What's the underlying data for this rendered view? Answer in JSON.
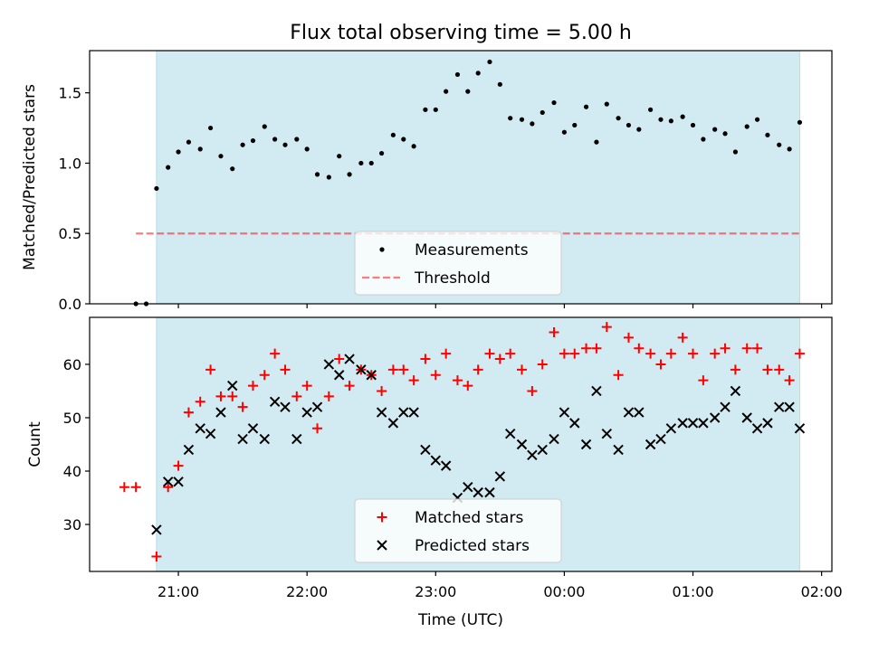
{
  "figure": {
    "title": "Flux total observing time = 5.00 h",
    "xlabel": "Time (UTC)",
    "x_tick_labels": [
      "21:00",
      "22:00",
      "23:00",
      "00:00",
      "01:00",
      "02:00"
    ]
  },
  "colors": {
    "shade": "#add8e6",
    "threshold": "#ff0000",
    "matched": "#ff0000",
    "predicted": "#000000",
    "measurement": "#000000"
  },
  "chart_data": [
    {
      "type": "scatter",
      "title": "Flux total observing time = 5.00 h",
      "ylabel": "Matched/Predicted stars",
      "xlabel": "",
      "x_unit": "hours after 20:00 UTC (same date scale as tick labels)",
      "xlim": [
        0.31,
        6.08
      ],
      "ylim": [
        0.0,
        1.8
      ],
      "y_tick_labels": [
        "0.0",
        "0.5",
        "1.0",
        "1.5"
      ],
      "y_ticks": [
        0.0,
        0.5,
        1.0,
        1.5
      ],
      "x_ticks": [
        1,
        2,
        3,
        4,
        5,
        6
      ],
      "observing_window": [
        0.83,
        5.83
      ],
      "threshold": {
        "name": "Threshold",
        "y": 0.5,
        "x_range": [
          0.67,
          5.83
        ],
        "style": "dashed"
      },
      "legend": {
        "position": "lower center",
        "entries": [
          "Measurements",
          "Threshold"
        ]
      },
      "series": [
        {
          "name": "Measurements",
          "x": [
            0.67,
            0.75,
            0.83,
            0.92,
            1.0,
            1.08,
            1.17,
            1.25,
            1.33,
            1.42,
            1.5,
            1.58,
            1.67,
            1.75,
            1.83,
            1.92,
            2.0,
            2.08,
            2.17,
            2.25,
            2.33,
            2.42,
            2.5,
            2.58,
            2.67,
            2.75,
            2.83,
            2.92,
            3.0,
            3.08,
            3.17,
            3.25,
            3.33,
            3.42,
            3.5,
            3.58,
            3.67,
            3.75,
            3.83,
            3.92,
            4.0,
            4.08,
            4.17,
            4.25,
            4.33,
            4.42,
            4.5,
            4.58,
            4.67,
            4.75,
            4.83,
            4.92,
            5.0,
            5.08,
            5.17,
            5.25,
            5.33,
            5.42,
            5.5,
            5.58,
            5.67,
            5.75,
            5.83
          ],
          "y": [
            0.0,
            0.0,
            0.82,
            0.97,
            1.08,
            1.15,
            1.1,
            1.25,
            1.05,
            0.96,
            1.13,
            1.16,
            1.26,
            1.17,
            1.13,
            1.17,
            1.1,
            0.92,
            0.9,
            1.05,
            0.92,
            1.0,
            1.0,
            1.07,
            1.2,
            1.17,
            1.12,
            1.38,
            1.38,
            1.51,
            1.63,
            1.51,
            1.64,
            1.72,
            1.56,
            1.32,
            1.31,
            1.28,
            1.36,
            1.43,
            1.22,
            1.27,
            1.4,
            1.15,
            1.42,
            1.32,
            1.27,
            1.24,
            1.38,
            1.31,
            1.3,
            1.33,
            1.27,
            1.17,
            1.24,
            1.21,
            1.08,
            1.26,
            1.31,
            1.2,
            1.13,
            1.1,
            1.29
          ]
        }
      ]
    },
    {
      "type": "scatter",
      "title": "",
      "ylabel": "Count",
      "xlabel": "Time (UTC)",
      "x_unit": "hours after 20:00 UTC (same date scale as tick labels)",
      "xlim": [
        0.31,
        6.08
      ],
      "ylim": [
        21.2,
        68.8
      ],
      "y_tick_labels": [
        "30",
        "40",
        "50",
        "60"
      ],
      "y_ticks": [
        30,
        40,
        50,
        60
      ],
      "x_ticks": [
        1,
        2,
        3,
        4,
        5,
        6
      ],
      "x_tick_labels": [
        "21:00",
        "22:00",
        "23:00",
        "00:00",
        "01:00",
        "02:00"
      ],
      "observing_window": [
        0.83,
        5.83
      ],
      "legend": {
        "position": "lower center",
        "entries": [
          "Matched stars",
          "Predicted stars"
        ]
      },
      "series": [
        {
          "name": "Matched stars",
          "marker": "+",
          "x": [
            0.58,
            0.67,
            0.83,
            0.92,
            1.0,
            1.08,
            1.17,
            1.25,
            1.33,
            1.42,
            1.5,
            1.58,
            1.67,
            1.75,
            1.83,
            1.92,
            2.0,
            2.08,
            2.17,
            2.25,
            2.33,
            2.42,
            2.5,
            2.58,
            2.67,
            2.75,
            2.83,
            2.92,
            3.0,
            3.08,
            3.17,
            3.25,
            3.33,
            3.42,
            3.5,
            3.58,
            3.67,
            3.75,
            3.83,
            3.92,
            4.0,
            4.08,
            4.17,
            4.25,
            4.33,
            4.42,
            4.5,
            4.58,
            4.67,
            4.75,
            4.83,
            4.92,
            5.0,
            5.08,
            5.17,
            5.25,
            5.33,
            5.42,
            5.5,
            5.58,
            5.67,
            5.75,
            5.83
          ],
          "y": [
            37,
            37,
            24,
            37,
            41,
            51,
            53,
            59,
            54,
            54,
            52,
            56,
            58,
            62,
            59,
            54,
            56,
            48,
            54,
            61,
            56,
            59,
            58,
            55,
            59,
            59,
            57,
            61,
            58,
            62,
            57,
            56,
            59,
            62,
            61,
            62,
            59,
            55,
            60,
            66,
            62,
            62,
            63,
            63,
            67,
            58,
            65,
            63,
            62,
            60,
            62,
            65,
            62,
            57,
            62,
            63,
            59,
            63,
            63,
            59,
            59,
            57,
            62
          ]
        },
        {
          "name": "Predicted stars",
          "marker": "x",
          "x": [
            0.83,
            0.92,
            1.0,
            1.08,
            1.17,
            1.25,
            1.33,
            1.42,
            1.5,
            1.58,
            1.67,
            1.75,
            1.83,
            1.92,
            2.0,
            2.08,
            2.17,
            2.25,
            2.33,
            2.42,
            2.5,
            2.58,
            2.67,
            2.75,
            2.83,
            2.92,
            3.0,
            3.08,
            3.17,
            3.25,
            3.33,
            3.42,
            3.5,
            3.58,
            3.67,
            3.75,
            3.83,
            3.92,
            4.0,
            4.08,
            4.17,
            4.25,
            4.33,
            4.42,
            4.5,
            4.58,
            4.67,
            4.75,
            4.83,
            4.92,
            5.0,
            5.08,
            5.17,
            5.25,
            5.33,
            5.42,
            5.5,
            5.58,
            5.67,
            5.75,
            5.83
          ],
          "y": [
            29,
            38,
            38,
            44,
            48,
            47,
            51,
            56,
            46,
            48,
            46,
            53,
            52,
            46,
            51,
            52,
            60,
            58,
            61,
            59,
            58,
            51,
            49,
            51,
            51,
            44,
            42,
            41,
            35,
            37,
            36,
            36,
            39,
            47,
            45,
            43,
            44,
            46,
            51,
            49,
            45,
            55,
            47,
            44,
            51,
            51,
            45,
            46,
            48,
            49,
            49,
            49,
            50,
            52,
            55,
            50,
            48,
            49,
            52,
            52,
            48
          ]
        }
      ]
    }
  ]
}
